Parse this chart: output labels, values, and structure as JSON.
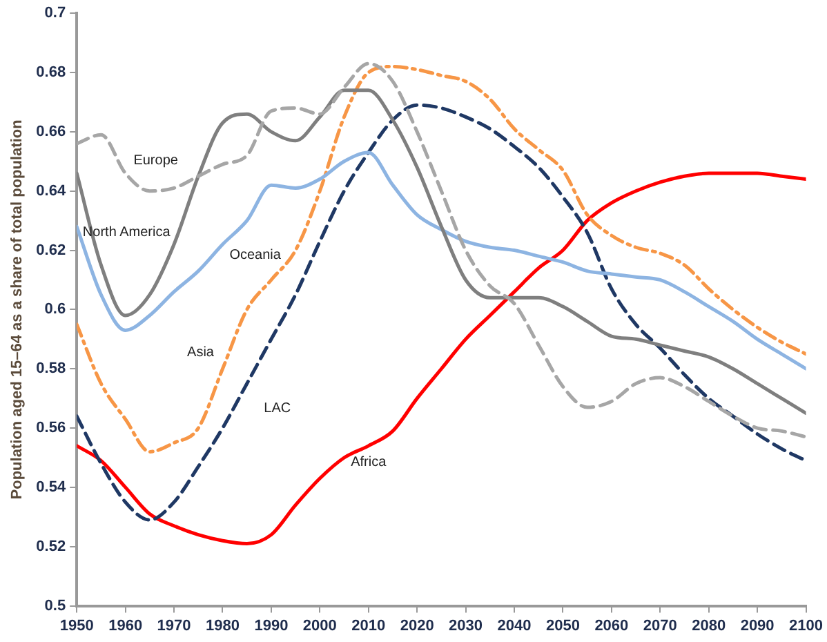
{
  "chart_data": {
    "type": "line",
    "ylabel": "Population aged 15–64 as a share of total population",
    "x": [
      1950,
      1955,
      1960,
      1965,
      1970,
      1975,
      1980,
      1985,
      1990,
      1995,
      2000,
      2005,
      2010,
      2015,
      2020,
      2025,
      2030,
      2035,
      2040,
      2045,
      2050,
      2055,
      2060,
      2065,
      2070,
      2075,
      2080,
      2085,
      2090,
      2095,
      2100
    ],
    "xlim": [
      1950,
      2100
    ],
    "xticks": [
      1950,
      1960,
      1970,
      1980,
      1990,
      2000,
      2010,
      2020,
      2030,
      2040,
      2050,
      2060,
      2070,
      2080,
      2090,
      2100
    ],
    "ylim": [
      0.5,
      0.7
    ],
    "yticks": [
      0.5,
      0.52,
      0.54,
      0.56,
      0.58,
      0.6,
      0.62,
      0.64,
      0.66,
      0.68,
      0.7
    ],
    "grid": false,
    "legend": false,
    "series": [
      {
        "name": "Europe",
        "color": "#a6a6a6",
        "line_style": "dashed",
        "values": [
          0.656,
          0.659,
          0.646,
          0.64,
          0.641,
          0.645,
          0.649,
          0.652,
          0.667,
          0.668,
          0.666,
          0.675,
          0.683,
          0.677,
          0.66,
          0.64,
          0.62,
          0.608,
          0.602,
          0.588,
          0.574,
          0.567,
          0.569,
          0.575,
          0.577,
          0.574,
          0.569,
          0.564,
          0.56,
          0.559,
          0.557
        ]
      },
      {
        "name": "North America",
        "color": "#7f7f7f",
        "line_style": "solid",
        "values": [
          0.646,
          0.615,
          0.598,
          0.605,
          0.622,
          0.645,
          0.663,
          0.666,
          0.66,
          0.657,
          0.665,
          0.674,
          0.674,
          0.664,
          0.648,
          0.628,
          0.61,
          0.604,
          0.604,
          0.604,
          0.601,
          0.596,
          0.591,
          0.59,
          0.588,
          0.586,
          0.584,
          0.58,
          0.575,
          0.57,
          0.565
        ]
      },
      {
        "name": "Oceania",
        "color": "#8db4e2",
        "line_style": "solid",
        "values": [
          0.628,
          0.605,
          0.593,
          0.598,
          0.606,
          0.613,
          0.622,
          0.63,
          0.642,
          0.641,
          0.644,
          0.65,
          0.653,
          0.642,
          0.632,
          0.627,
          0.623,
          0.621,
          0.62,
          0.618,
          0.616,
          0.613,
          0.612,
          0.611,
          0.61,
          0.606,
          0.601,
          0.596,
          0.59,
          0.585,
          0.58
        ]
      },
      {
        "name": "Asia",
        "color": "#f79646",
        "line_style": "dashdot",
        "values": [
          0.595,
          0.575,
          0.563,
          0.552,
          0.555,
          0.56,
          0.58,
          0.6,
          0.61,
          0.62,
          0.64,
          0.665,
          0.68,
          0.682,
          0.681,
          0.679,
          0.677,
          0.671,
          0.661,
          0.654,
          0.647,
          0.632,
          0.625,
          0.621,
          0.619,
          0.615,
          0.607,
          0.6,
          0.594,
          0.589,
          0.585
        ]
      },
      {
        "name": "LAC",
        "color": "#1f3864",
        "line_style": "dashed",
        "values": [
          0.564,
          0.548,
          0.535,
          0.529,
          0.535,
          0.547,
          0.56,
          0.575,
          0.59,
          0.605,
          0.623,
          0.64,
          0.653,
          0.664,
          0.669,
          0.668,
          0.665,
          0.661,
          0.655,
          0.648,
          0.638,
          0.626,
          0.607,
          0.595,
          0.587,
          0.578,
          0.57,
          0.564,
          0.558,
          0.553,
          0.549
        ]
      },
      {
        "name": "Africa",
        "color": "#ff0000",
        "line_style": "solid",
        "values": [
          0.554,
          0.549,
          0.54,
          0.531,
          0.527,
          0.524,
          0.522,
          0.521,
          0.524,
          0.534,
          0.543,
          0.55,
          0.554,
          0.559,
          0.57,
          0.58,
          0.59,
          0.598,
          0.606,
          0.614,
          0.62,
          0.63,
          0.636,
          0.64,
          0.643,
          0.645,
          0.646,
          0.646,
          0.646,
          0.645,
          0.644
        ]
      }
    ]
  }
}
